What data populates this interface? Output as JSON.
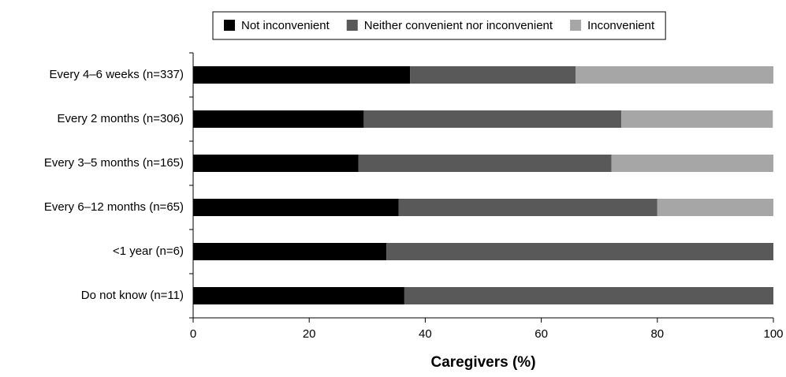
{
  "chart_data": {
    "type": "stacked-bar-horizontal",
    "categories": [
      "Every 4–6 weeks (n=337)",
      "Every 2 months (n=306)",
      "Every 3–5 months (n=165)",
      "Every 6–12 months (n=65)",
      "<1 year (n=6)",
      "Do not know (n=11)"
    ],
    "series": [
      {
        "name": "Not inconvenient",
        "color": "#000000",
        "values": [
          37.4,
          29.4,
          28.5,
          35.4,
          33.3,
          36.4
        ]
      },
      {
        "name": "Neither convenient nor inconvenient",
        "color": "#595959",
        "values": [
          28.5,
          44.4,
          43.6,
          44.6,
          66.7,
          63.6
        ]
      },
      {
        "name": "Inconvenient",
        "color": "#a6a6a6",
        "values": [
          34.1,
          26.1,
          27.9,
          20.0,
          0,
          0
        ]
      }
    ],
    "xlabel": "Caregivers (%)",
    "xlim": [
      0,
      100
    ],
    "xticks": [
      0,
      20,
      40,
      60,
      80,
      100
    ],
    "legend": "top"
  }
}
